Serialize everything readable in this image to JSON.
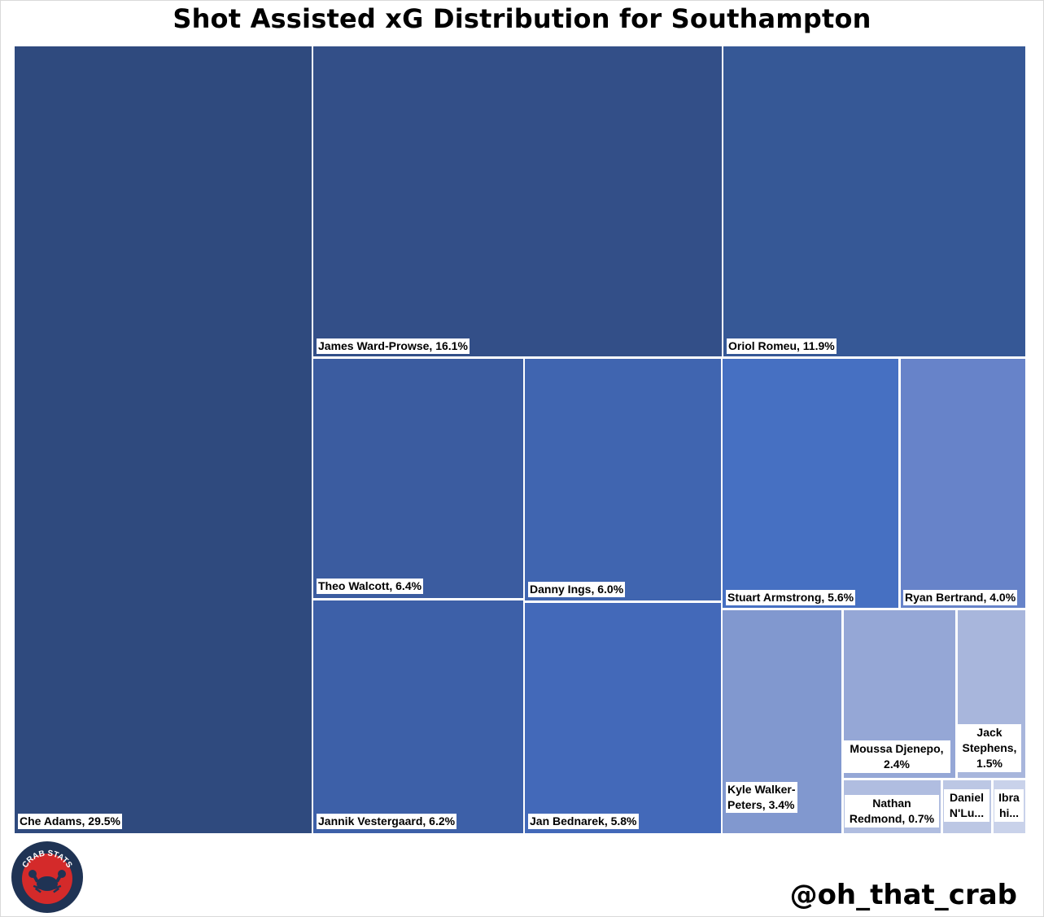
{
  "chart_data": {
    "type": "treemap",
    "title": "Shot Assisted xG Distribution for Southampton",
    "items": [
      {
        "name": "Che Adams",
        "value": 29.5,
        "label": "Che Adams, 29.5%",
        "color": "#2f4a7e"
      },
      {
        "name": "James Ward-Prowse",
        "value": 16.1,
        "label": "James Ward-Prowse, 16.1%",
        "color": "#334f88"
      },
      {
        "name": "Oriol Romeu",
        "value": 11.9,
        "label": "Oriol Romeu, 11.9%",
        "color": "#365896"
      },
      {
        "name": "Theo Walcott",
        "value": 6.4,
        "label": "Theo Walcott, 6.4%",
        "color": "#3b5ca0"
      },
      {
        "name": "Jannik Vestergaard",
        "value": 6.2,
        "label": "Jannik Vestergaard, 6.2%",
        "color": "#3d60a8"
      },
      {
        "name": "Danny Ings",
        "value": 6.0,
        "label": "Danny Ings, 6.0%",
        "color": "#4065b0"
      },
      {
        "name": "Jan Bednarek",
        "value": 5.8,
        "label": "Jan Bednarek, 5.8%",
        "color": "#4369b9"
      },
      {
        "name": "Stuart Armstrong",
        "value": 5.6,
        "label": "Stuart Armstrong, 5.6%",
        "color": "#4670c2"
      },
      {
        "name": "Ryan Bertrand",
        "value": 4.0,
        "label": "Ryan Bertrand, 4.0%",
        "color": "#6783c9"
      },
      {
        "name": "Kyle Walker-Peters",
        "value": 3.4,
        "label": "Kyle Walker-\nPeters, 3.4%",
        "color": "#8198cf"
      },
      {
        "name": "Moussa Djenepo",
        "value": 2.4,
        "label": "Moussa Djenepo,\n2.4%",
        "color": "#95a7d6"
      },
      {
        "name": "Jack Stephens",
        "value": 1.5,
        "label": "Jack\nStephens,\n1.5%",
        "color": "#a8b6dc"
      },
      {
        "name": "Nathan Redmond",
        "value": 0.7,
        "label": "Nathan\nRedmond, 0.7%",
        "color": "#b0bde0"
      },
      {
        "name": "Daniel N'Lundulu",
        "value": null,
        "label": "Daniel\nN'Lu...",
        "color": "#bcc7e4"
      },
      {
        "name": "Ibrahima Diallo",
        "value": null,
        "label": "Ibra\nhi...",
        "color": "#c9d2ea"
      }
    ]
  },
  "logo": {
    "text": "CRAB STATS",
    "ring_color": "#1f3354",
    "inner_color": "#d42a2a"
  },
  "footer": {
    "handle": "@oh_that_crab"
  }
}
